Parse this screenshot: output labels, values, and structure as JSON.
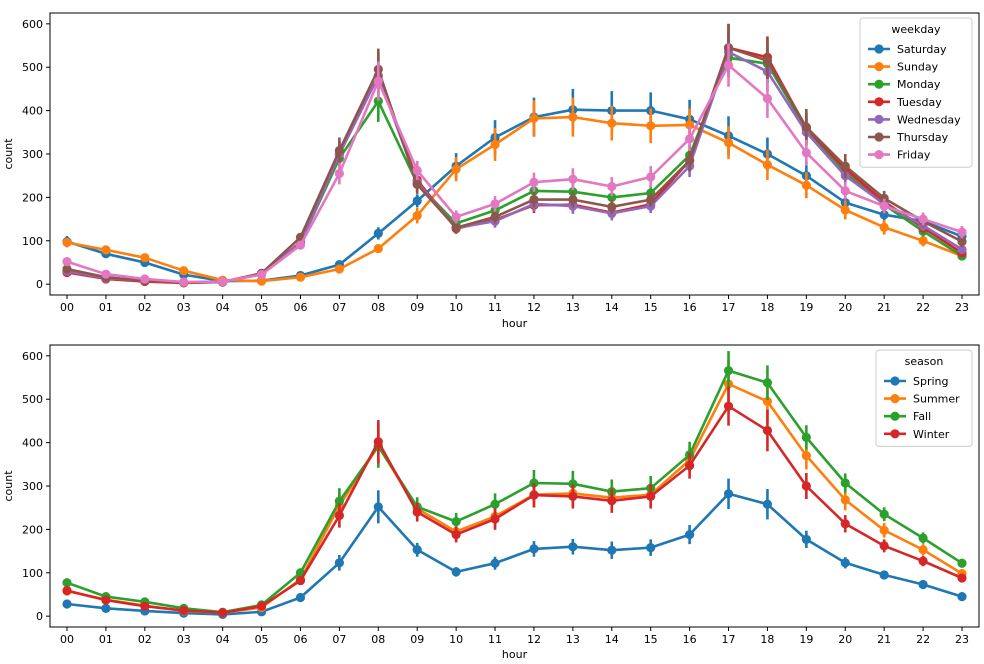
{
  "chart_data": [
    {
      "type": "line",
      "xlabel": "hour",
      "ylabel": "count",
      "categories": [
        "00",
        "01",
        "02",
        "03",
        "04",
        "05",
        "06",
        "07",
        "08",
        "09",
        "10",
        "11",
        "12",
        "13",
        "14",
        "15",
        "16",
        "17",
        "18",
        "19",
        "20",
        "21",
        "22",
        "23"
      ],
      "ylim": [
        -25,
        625
      ],
      "yticks": [
        0,
        100,
        200,
        300,
        400,
        500,
        600
      ],
      "legend": {
        "title": "weekday",
        "placement": "top-right"
      },
      "series": [
        {
          "name": "Saturday",
          "color": "#1f77b4",
          "values": [
            98,
            70,
            50,
            22,
            7,
            8,
            20,
            45,
            117,
            192,
            272,
            338,
            385,
            402,
            400,
            400,
            380,
            342,
            300,
            250,
            188,
            160,
            145,
            110
          ],
          "errors": [
            13,
            8,
            7,
            5,
            2,
            2,
            4,
            7,
            14,
            15,
            30,
            40,
            45,
            48,
            45,
            42,
            45,
            45,
            38,
            33,
            22,
            20,
            16,
            14
          ]
        },
        {
          "name": "Sunday",
          "color": "#ff7f0e",
          "values": [
            96,
            79,
            61,
            31,
            9,
            7,
            16,
            35,
            82,
            158,
            265,
            322,
            382,
            385,
            371,
            365,
            367,
            326,
            275,
            228,
            171,
            131,
            100,
            65
          ],
          "errors": [
            10,
            8,
            7,
            5,
            2,
            2,
            3,
            6,
            10,
            18,
            28,
            38,
            42,
            45,
            40,
            40,
            38,
            38,
            35,
            30,
            22,
            17,
            13,
            10
          ]
        },
        {
          "name": "Monday",
          "color": "#2ca02c",
          "values": [
            28,
            13,
            7,
            4,
            5,
            24,
            95,
            290,
            422,
            232,
            140,
            170,
            215,
            213,
            200,
            210,
            297,
            522,
            508,
            357,
            257,
            183,
            122,
            65
          ],
          "errors": [
            4,
            3,
            2,
            1,
            1,
            3,
            8,
            25,
            48,
            20,
            12,
            15,
            20,
            20,
            20,
            18,
            25,
            45,
            40,
            30,
            20,
            15,
            12,
            8
          ]
        },
        {
          "name": "Tuesday",
          "color": "#d62728",
          "values": [
            27,
            12,
            6,
            3,
            5,
            24,
            97,
            300,
            480,
            240,
            128,
            148,
            182,
            183,
            165,
            184,
            285,
            545,
            523,
            360,
            265,
            190,
            130,
            72
          ],
          "errors": [
            4,
            3,
            2,
            1,
            1,
            3,
            9,
            28,
            55,
            22,
            12,
            15,
            18,
            18,
            16,
            16,
            25,
            55,
            48,
            35,
            25,
            17,
            12,
            8
          ]
        },
        {
          "name": "Wednesday",
          "color": "#9467bd",
          "values": [
            30,
            14,
            8,
            4,
            5,
            25,
            95,
            300,
            480,
            235,
            130,
            145,
            185,
            180,
            163,
            180,
            272,
            535,
            490,
            350,
            250,
            185,
            135,
            80
          ],
          "errors": [
            5,
            3,
            2,
            1,
            1,
            3,
            9,
            28,
            52,
            22,
            12,
            15,
            18,
            18,
            16,
            16,
            25,
            50,
            45,
            30,
            22,
            16,
            12,
            9
          ]
        },
        {
          "name": "Thursday",
          "color": "#8c564b",
          "values": [
            35,
            16,
            8,
            4,
            5,
            25,
            108,
            308,
            495,
            230,
            130,
            155,
            195,
            195,
            178,
            195,
            285,
            545,
            515,
            362,
            272,
            198,
            145,
            98
          ],
          "errors": [
            5,
            3,
            2,
            1,
            1,
            3,
            10,
            30,
            48,
            22,
            12,
            15,
            18,
            18,
            16,
            16,
            25,
            55,
            50,
            42,
            28,
            17,
            14,
            12
          ]
        },
        {
          "name": "Friday",
          "color": "#e377c2",
          "values": [
            52,
            23,
            12,
            5,
            6,
            22,
            90,
            255,
            468,
            262,
            155,
            185,
            235,
            242,
            225,
            247,
            335,
            505,
            428,
            303,
            215,
            180,
            150,
            120
          ],
          "errors": [
            7,
            4,
            2,
            1,
            1,
            3,
            8,
            25,
            45,
            22,
            15,
            18,
            22,
            25,
            22,
            25,
            28,
            50,
            45,
            30,
            20,
            17,
            15,
            14
          ]
        }
      ]
    },
    {
      "type": "line",
      "xlabel": "hour",
      "ylabel": "count",
      "categories": [
        "00",
        "01",
        "02",
        "03",
        "04",
        "05",
        "06",
        "07",
        "08",
        "09",
        "10",
        "11",
        "12",
        "13",
        "14",
        "15",
        "16",
        "17",
        "18",
        "19",
        "20",
        "21",
        "22",
        "23"
      ],
      "ylim": [
        -25,
        625
      ],
      "yticks": [
        0,
        100,
        200,
        300,
        400,
        500,
        600
      ],
      "legend": {
        "title": "season",
        "placement": "top-right"
      },
      "series": [
        {
          "name": "Spring",
          "color": "#1f77b4",
          "values": [
            28,
            18,
            12,
            7,
            4,
            10,
            43,
            123,
            252,
            153,
            102,
            122,
            155,
            160,
            152,
            158,
            188,
            282,
            258,
            177,
            123,
            95,
            73,
            45
          ],
          "errors": [
            3,
            2,
            2,
            1,
            1,
            2,
            5,
            18,
            38,
            16,
            11,
            15,
            18,
            18,
            20,
            19,
            22,
            35,
            35,
            20,
            13,
            10,
            8,
            5
          ]
        },
        {
          "name": "Summer",
          "color": "#ff7f0e",
          "values": [
            58,
            38,
            24,
            12,
            8,
            20,
            85,
            255,
            392,
            248,
            195,
            230,
            280,
            283,
            273,
            280,
            360,
            535,
            495,
            370,
            268,
            198,
            153,
            98
          ],
          "errors": [
            5,
            4,
            3,
            2,
            1,
            3,
            8,
            28,
            48,
            22,
            18,
            25,
            30,
            30,
            28,
            28,
            30,
            55,
            50,
            32,
            24,
            17,
            13,
            10
          ]
        },
        {
          "name": "Fall",
          "color": "#2ca02c",
          "values": [
            77,
            45,
            33,
            18,
            9,
            26,
            100,
            265,
            392,
            252,
            218,
            258,
            307,
            305,
            287,
            295,
            372,
            566,
            538,
            412,
            307,
            235,
            180,
            122
          ],
          "errors": [
            6,
            4,
            3,
            2,
            1,
            3,
            9,
            30,
            50,
            22,
            20,
            25,
            30,
            30,
            28,
            28,
            30,
            45,
            40,
            28,
            22,
            16,
            13,
            10
          ]
        },
        {
          "name": "Winter",
          "color": "#d62728",
          "values": [
            59,
            37,
            23,
            13,
            8,
            23,
            82,
            232,
            402,
            240,
            188,
            224,
            279,
            276,
            266,
            276,
            347,
            484,
            428,
            300,
            213,
            162,
            127,
            88
          ],
          "errors": [
            5,
            4,
            3,
            2,
            1,
            3,
            8,
            28,
            50,
            22,
            18,
            25,
            28,
            28,
            28,
            28,
            30,
            45,
            48,
            30,
            20,
            15,
            12,
            9
          ]
        }
      ]
    }
  ]
}
